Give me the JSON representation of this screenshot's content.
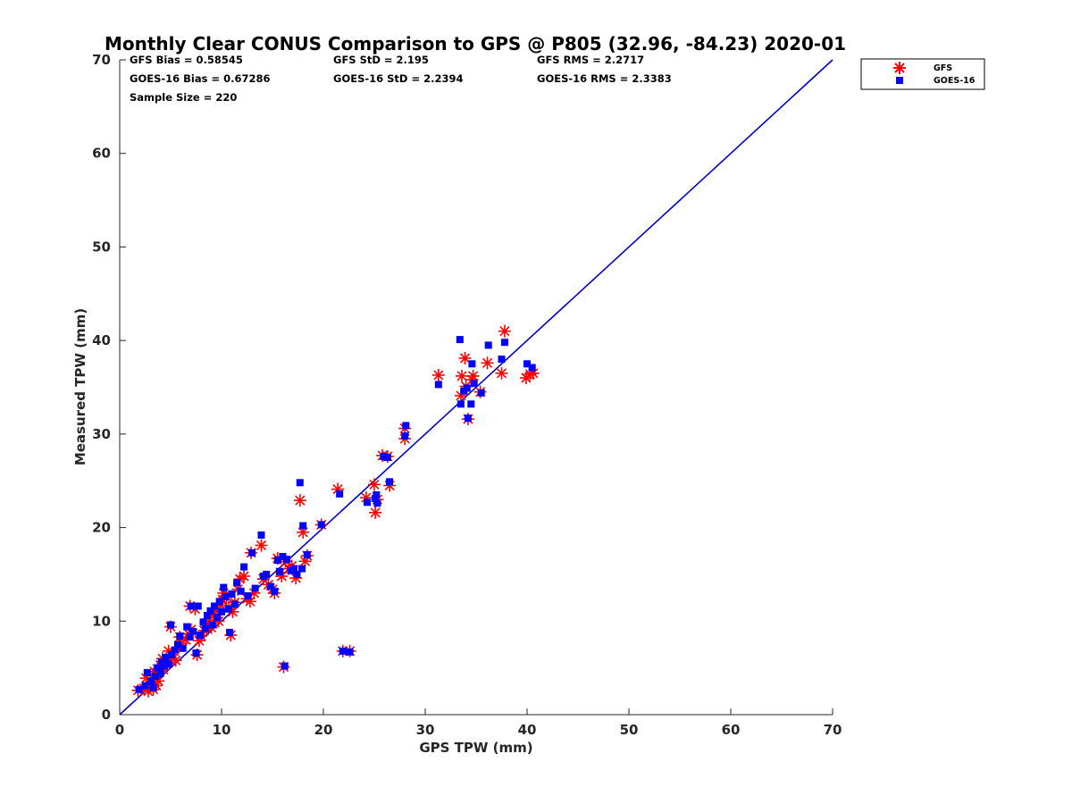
{
  "chart_data": {
    "type": "scatter",
    "title": "Monthly Clear CONUS Comparison to GPS @ P805 (32.96, -84.23) 2020-01",
    "xlabel": "GPS TPW (mm)",
    "ylabel": "Measured TPW (mm)",
    "xlim": [
      0,
      70
    ],
    "ylim": [
      0,
      70
    ],
    "xticks": [
      "0",
      "10",
      "20",
      "30",
      "40",
      "50",
      "60",
      "70"
    ],
    "yticks": [
      "0",
      "10",
      "20",
      "30",
      "40",
      "50",
      "60",
      "70"
    ],
    "grid": false,
    "legend_position": "top-right",
    "reference_line": {
      "x": [
        0,
        70
      ],
      "y": [
        0,
        70
      ],
      "color": "#0000cc"
    },
    "stats": {
      "gfs_bias": "GFS Bias = 0.58545",
      "gfs_std": "GFS StD = 2.195",
      "gfs_rms": "GFS RMS = 2.2717",
      "goes_bias": "GOES-16 Bias = 0.67286",
      "goes_std": "GOES-16 StD = 2.2394",
      "goes_rms": "GOES-16 RMS = 2.3383",
      "sample_size": "Sample Size = 220"
    },
    "series": [
      {
        "name": "GFS",
        "marker": "asterisk",
        "color": "#ff0000",
        "points": [
          [
            1.8,
            2.6
          ],
          [
            2.4,
            2.8
          ],
          [
            2.8,
            2.5
          ],
          [
            3.0,
            3.2
          ],
          [
            3.3,
            2.7
          ],
          [
            3.6,
            3.1
          ],
          [
            3.8,
            3.6
          ],
          [
            2.6,
            3.9
          ],
          [
            3.2,
            4.2
          ],
          [
            3.4,
            4.6
          ],
          [
            3.7,
            4.9
          ],
          [
            4.0,
            5.3
          ],
          [
            4.3,
            4.8
          ],
          [
            4.6,
            5.5
          ],
          [
            4.2,
            6.0
          ],
          [
            4.9,
            5.9
          ],
          [
            5.2,
            6.4
          ],
          [
            5.5,
            5.8
          ],
          [
            4.8,
            6.8
          ],
          [
            5.0,
            9.4
          ],
          [
            5.8,
            7.2
          ],
          [
            6.1,
            7.6
          ],
          [
            5.9,
            8.3
          ],
          [
            6.5,
            8.0
          ],
          [
            6.8,
            8.6
          ],
          [
            7.0,
            9.1
          ],
          [
            6.9,
            11.6
          ],
          [
            7.4,
            11.3
          ],
          [
            7.6,
            6.4
          ],
          [
            7.8,
            7.9
          ],
          [
            8.0,
            8.4
          ],
          [
            8.3,
            9.0
          ],
          [
            8.5,
            9.6
          ],
          [
            8.8,
            10.1
          ],
          [
            9.0,
            9.3
          ],
          [
            9.2,
            10.6
          ],
          [
            9.4,
            11.1
          ],
          [
            9.7,
            10.0
          ],
          [
            9.9,
            11.7
          ],
          [
            10.1,
            12.3
          ],
          [
            10.2,
            13.0
          ],
          [
            10.5,
            12.6
          ],
          [
            10.7,
            11.5
          ],
          [
            10.9,
            8.5
          ],
          [
            11.1,
            11.0
          ],
          [
            11.3,
            12.0
          ],
          [
            11.6,
            13.4
          ],
          [
            11.8,
            14.5
          ],
          [
            12.2,
            14.8
          ],
          [
            12.5,
            12.4
          ],
          [
            12.8,
            12.1
          ],
          [
            12.9,
            17.3
          ],
          [
            13.2,
            13.0
          ],
          [
            13.9,
            18.1
          ],
          [
            14.1,
            14.5
          ],
          [
            14.6,
            13.9
          ],
          [
            15.0,
            13.4
          ],
          [
            15.2,
            13.0
          ],
          [
            15.5,
            16.7
          ],
          [
            15.8,
            15.2
          ],
          [
            15.9,
            14.8
          ],
          [
            16.1,
            5.1
          ],
          [
            16.3,
            16.4
          ],
          [
            16.6,
            15.6
          ],
          [
            16.9,
            15.9
          ],
          [
            17.3,
            14.6
          ],
          [
            17.7,
            22.9
          ],
          [
            18.0,
            19.5
          ],
          [
            18.4,
            17.0
          ],
          [
            18.2,
            16.4
          ],
          [
            19.8,
            20.3
          ],
          [
            21.4,
            24.1
          ],
          [
            21.9,
            6.8
          ],
          [
            22.6,
            6.8
          ],
          [
            24.2,
            23.2
          ],
          [
            25.0,
            24.6
          ],
          [
            25.1,
            21.6
          ],
          [
            25.3,
            23.0
          ],
          [
            25.8,
            27.7
          ],
          [
            26.3,
            27.6
          ],
          [
            26.5,
            24.5
          ],
          [
            28.0,
            29.5
          ],
          [
            28.0,
            30.6
          ],
          [
            31.3,
            36.3
          ],
          [
            33.5,
            34.1
          ],
          [
            33.6,
            36.2
          ],
          [
            33.9,
            38.1
          ],
          [
            34.0,
            35.1
          ],
          [
            34.2,
            31.6
          ],
          [
            34.6,
            35.8
          ],
          [
            34.7,
            36.2
          ],
          [
            35.4,
            34.5
          ],
          [
            36.1,
            37.6
          ],
          [
            37.5,
            36.5
          ],
          [
            37.8,
            41.0
          ],
          [
            39.9,
            36.0
          ],
          [
            40.3,
            36.4
          ],
          [
            40.6,
            36.5
          ]
        ]
      },
      {
        "name": "GOES-16",
        "marker": "square",
        "color": "#0000ff",
        "points": [
          [
            1.9,
            2.7
          ],
          [
            2.5,
            3.1
          ],
          [
            2.7,
            4.5
          ],
          [
            3.1,
            3.6
          ],
          [
            3.3,
            2.9
          ],
          [
            3.5,
            4.1
          ],
          [
            3.7,
            5.0
          ],
          [
            4.0,
            4.4
          ],
          [
            4.1,
            5.6
          ],
          [
            4.4,
            5.2
          ],
          [
            4.5,
            6.1
          ],
          [
            4.8,
            5.4
          ],
          [
            5.0,
            9.6
          ],
          [
            5.1,
            6.4
          ],
          [
            5.4,
            6.9
          ],
          [
            5.7,
            7.5
          ],
          [
            5.9,
            8.4
          ],
          [
            6.2,
            7.1
          ],
          [
            6.6,
            9.4
          ],
          [
            6.9,
            8.3
          ],
          [
            7.0,
            11.6
          ],
          [
            7.2,
            8.9
          ],
          [
            7.5,
            6.6
          ],
          [
            7.7,
            11.6
          ],
          [
            7.9,
            8.5
          ],
          [
            8.2,
            9.9
          ],
          [
            8.4,
            9.2
          ],
          [
            8.6,
            10.6
          ],
          [
            8.9,
            11.1
          ],
          [
            9.1,
            9.6
          ],
          [
            9.3,
            11.6
          ],
          [
            9.6,
            10.4
          ],
          [
            9.8,
            12.1
          ],
          [
            10.0,
            11.0
          ],
          [
            10.2,
            13.6
          ],
          [
            10.4,
            12.6
          ],
          [
            10.7,
            11.3
          ],
          [
            10.8,
            8.8
          ],
          [
            11.0,
            12.9
          ],
          [
            11.3,
            11.8
          ],
          [
            11.5,
            14.1
          ],
          [
            11.9,
            13.2
          ],
          [
            12.2,
            15.8
          ],
          [
            12.6,
            12.7
          ],
          [
            13.0,
            17.3
          ],
          [
            13.3,
            13.5
          ],
          [
            13.9,
            19.2
          ],
          [
            14.1,
            14.8
          ],
          [
            14.4,
            15.0
          ],
          [
            14.8,
            13.7
          ],
          [
            15.2,
            13.2
          ],
          [
            15.5,
            16.5
          ],
          [
            15.7,
            15.3
          ],
          [
            16.0,
            16.9
          ],
          [
            16.2,
            5.2
          ],
          [
            16.4,
            16.6
          ],
          [
            16.8,
            15.4
          ],
          [
            17.1,
            15.6
          ],
          [
            17.4,
            15.0
          ],
          [
            17.7,
            24.8
          ],
          [
            17.9,
            15.6
          ],
          [
            18.0,
            20.2
          ],
          [
            18.4,
            17.1
          ],
          [
            19.8,
            20.3
          ],
          [
            21.6,
            23.6
          ],
          [
            21.9,
            6.8
          ],
          [
            22.6,
            6.7
          ],
          [
            24.3,
            22.7
          ],
          [
            25.1,
            23.1
          ],
          [
            25.2,
            23.5
          ],
          [
            25.3,
            22.6
          ],
          [
            25.9,
            27.6
          ],
          [
            26.3,
            27.5
          ],
          [
            26.5,
            24.9
          ],
          [
            28.0,
            29.8
          ],
          [
            28.1,
            30.9
          ],
          [
            31.3,
            35.3
          ],
          [
            33.4,
            40.1
          ],
          [
            33.5,
            33.2
          ],
          [
            33.8,
            34.6
          ],
          [
            34.1,
            34.9
          ],
          [
            34.2,
            31.7
          ],
          [
            34.5,
            33.2
          ],
          [
            34.6,
            37.5
          ],
          [
            34.8,
            35.4
          ],
          [
            35.5,
            34.4
          ],
          [
            36.2,
            39.5
          ],
          [
            37.5,
            38.0
          ],
          [
            37.8,
            39.8
          ],
          [
            40.0,
            37.5
          ],
          [
            40.5,
            37.1
          ]
        ]
      }
    ]
  }
}
